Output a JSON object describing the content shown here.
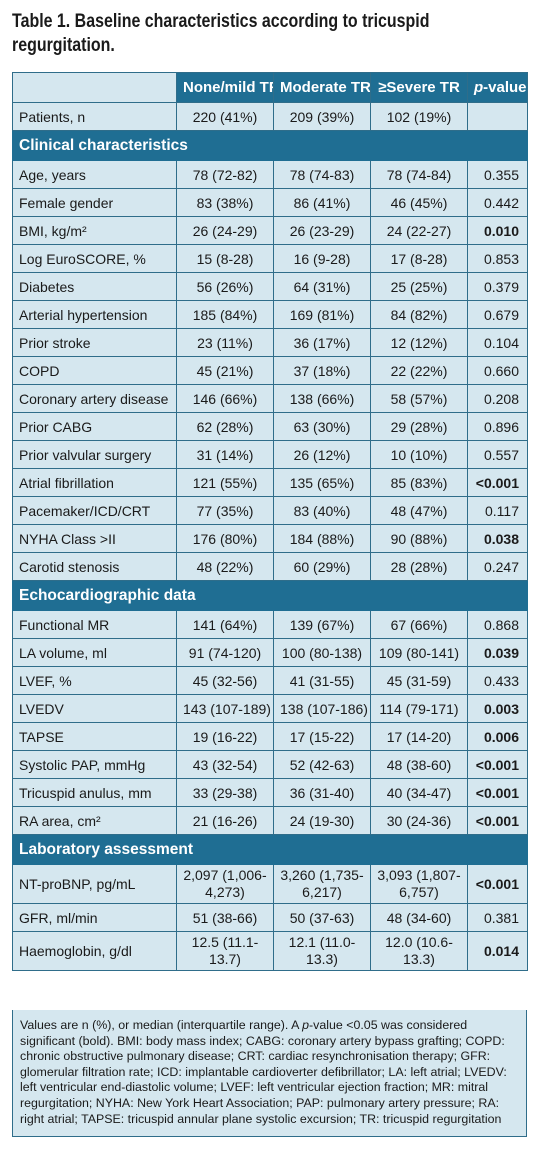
{
  "caption": "Table 1. Baseline characteristics according to tricuspid regurgitation.",
  "header": {
    "col1": "None/mild TR",
    "col2": "Moderate TR",
    "col3": "≥Severe TR",
    "p_italic": "p",
    "p_rest": "-value"
  },
  "patients": {
    "label": "Patients, n",
    "c1": "220 (41%)",
    "c2": "209 (39%)",
    "c3": "102 (19%)",
    "p": ""
  },
  "sections": {
    "clinical": "Clinical characteristics",
    "echo": "Echocardiographic data",
    "lab": "Laboratory assessment"
  },
  "clinical_rows": [
    {
      "label": "Age, years",
      "c1": "78 (72-82)",
      "c2": "78 (74-83)",
      "c3": "78 (74-84)",
      "p": "0.355",
      "bold": false
    },
    {
      "label": "Female gender",
      "c1": "83 (38%)",
      "c2": "86 (41%)",
      "c3": "46 (45%)",
      "p": "0.442",
      "bold": false
    },
    {
      "label": "BMI, kg/m²",
      "c1": "26 (24-29)",
      "c2": "26 (23-29)",
      "c3": "24 (22-27)",
      "p": "0.010",
      "bold": true
    },
    {
      "label": "Log EuroSCORE, %",
      "c1": "15 (8-28)",
      "c2": "16 (9-28)",
      "c3": "17 (8-28)",
      "p": "0.853",
      "bold": false
    },
    {
      "label": "Diabetes",
      "c1": "56 (26%)",
      "c2": "64 (31%)",
      "c3": "25 (25%)",
      "p": "0.379",
      "bold": false
    },
    {
      "label": "Arterial hypertension",
      "c1": "185 (84%)",
      "c2": "169 (81%)",
      "c3": "84 (82%)",
      "p": "0.679",
      "bold": false
    },
    {
      "label": "Prior stroke",
      "c1": "23 (11%)",
      "c2": "36 (17%)",
      "c3": "12 (12%)",
      "p": "0.104",
      "bold": false
    },
    {
      "label": "COPD",
      "c1": "45 (21%)",
      "c2": "37 (18%)",
      "c3": "22 (22%)",
      "p": "0.660",
      "bold": false
    },
    {
      "label": "Coronary artery disease",
      "c1": "146 (66%)",
      "c2": "138 (66%)",
      "c3": "58 (57%)",
      "p": "0.208",
      "bold": false
    },
    {
      "label": "Prior CABG",
      "c1": "62 (28%)",
      "c2": "63 (30%)",
      "c3": "29 (28%)",
      "p": "0.896",
      "bold": false
    },
    {
      "label": "Prior valvular surgery",
      "c1": "31 (14%)",
      "c2": "26 (12%)",
      "c3": "10 (10%)",
      "p": "0.557",
      "bold": false
    },
    {
      "label": "Atrial fibrillation",
      "c1": "121 (55%)",
      "c2": "135 (65%)",
      "c3": "85 (83%)",
      "p": "<0.001",
      "bold": true
    },
    {
      "label": "Pacemaker/ICD/CRT",
      "c1": "77 (35%)",
      "c2": "83 (40%)",
      "c3": "48 (47%)",
      "p": "0.117",
      "bold": false
    },
    {
      "label": "NYHA Class >II",
      "c1": "176 (80%)",
      "c2": "184 (88%)",
      "c3": "90 (88%)",
      "p": "0.038",
      "bold": true
    },
    {
      "label": "Carotid stenosis",
      "c1": "48 (22%)",
      "c2": "60 (29%)",
      "c3": "28 (28%)",
      "p": "0.247",
      "bold": false
    }
  ],
  "echo_rows": [
    {
      "label": "Functional MR",
      "c1": "141 (64%)",
      "c2": "139 (67%)",
      "c3": "67 (66%)",
      "p": "0.868",
      "bold": false
    },
    {
      "label": "LA volume, ml",
      "c1": "91 (74-120)",
      "c2": "100 (80-138)",
      "c3": "109 (80-141)",
      "p": "0.039",
      "bold": true
    },
    {
      "label": "LVEF, %",
      "c1": "45 (32-56)",
      "c2": "41 (31-55)",
      "c3": "45 (31-59)",
      "p": "0.433",
      "bold": false
    },
    {
      "label": "LVEDV",
      "c1": "143 (107-189)",
      "c2": "138 (107-186)",
      "c3": "114 (79-171)",
      "p": "0.003",
      "bold": true
    },
    {
      "label": "TAPSE",
      "c1": "19 (16-22)",
      "c2": "17 (15-22)",
      "c3": "17 (14-20)",
      "p": "0.006",
      "bold": true
    },
    {
      "label": "Systolic PAP, mmHg",
      "c1": "43 (32-54)",
      "c2": "52 (42-63)",
      "c3": "48 (38-60)",
      "p": "<0.001",
      "bold": true
    },
    {
      "label": "Tricuspid anulus, mm",
      "c1": "33 (29-38)",
      "c2": "36 (31-40)",
      "c3": "40 (34-47)",
      "p": "<0.001",
      "bold": true
    },
    {
      "label": "RA area, cm²",
      "c1": "21 (16-26)",
      "c2": "24 (19-30)",
      "c3": "30 (24-36)",
      "p": "<0.001",
      "bold": true
    }
  ],
  "lab_rows": [
    {
      "label": "NT-proBNP, pg/mL",
      "c1": "2,097 (1,006-4,273)",
      "c2": "3,260 (1,735-6,217)",
      "c3": "3,093 (1,807-6,757)",
      "p": "<0.001",
      "bold": true,
      "tall": true
    },
    {
      "label": "GFR, ml/min",
      "c1": "51 (38-66)",
      "c2": "50 (37-63)",
      "c3": "48 (34-60)",
      "p": "0.381",
      "bold": false,
      "tall": false
    },
    {
      "label": "Haemoglobin, g/dl",
      "c1": "12.5 (11.1-13.7)",
      "c2": "12.1 (11.0-13.3)",
      "c3": "12.0 (10.6-13.3)",
      "p": "0.014",
      "bold": true,
      "tall": true
    }
  ],
  "footnote": {
    "part1": "Values are n (%), or median (interquartile range). A ",
    "p_italic": "p",
    "part2": "-value <0.05 was considered significant (bold). BMI: body mass index; CABG: coronary artery bypass grafting; COPD: chronic obstructive pulmonary disease; CRT: cardiac resynchronisation therapy; GFR: glomerular filtration rate; ICD: implantable cardioverter defibrillator; LA: left atrial; LVEDV: left ventricular end-diastolic volume; LVEF: left ventricular ejection fraction; MR: mitral regurgitation; NYHA: New York Heart Association; PAP: pulmonary artery pressure; RA: right atrial; TAPSE: tricuspid annular plane systolic excursion; TR: tricuspid regurgitation"
  }
}
